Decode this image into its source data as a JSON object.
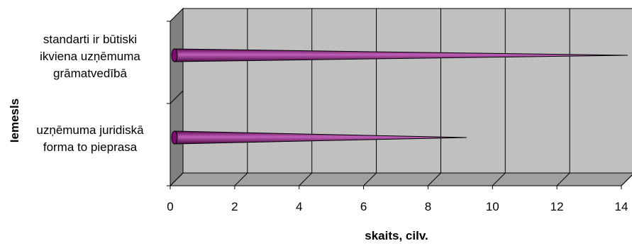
{
  "chart_data": {
    "type": "bar",
    "style": "3d-cone-horizontal",
    "categories": [
      "standarti ir būtiski ikviena uzņēmuma grāmatvedībā",
      "uzņēmuma juridiskā forma to pieprasa"
    ],
    "category_lines": [
      [
        "standarti ir būtiski",
        "ikviena uzņēmuma",
        "grāmatvedībā"
      ],
      [
        "uzņēmuma juridiskā",
        "forma to pieprasa"
      ]
    ],
    "values": [
      14,
      9
    ],
    "xlabel": "skaits, cilv.",
    "ylabel": "Iemesls",
    "xlim": [
      0,
      14
    ],
    "xticks": [
      "0",
      "2",
      "4",
      "6",
      "8",
      "10",
      "12",
      "14"
    ],
    "grid": true,
    "colors": {
      "bar": "#7a0f6e",
      "bar_highlight": "#c060b8",
      "wall": "#c0c0c0",
      "side_wall": "#808080",
      "grid": "#000000"
    }
  }
}
